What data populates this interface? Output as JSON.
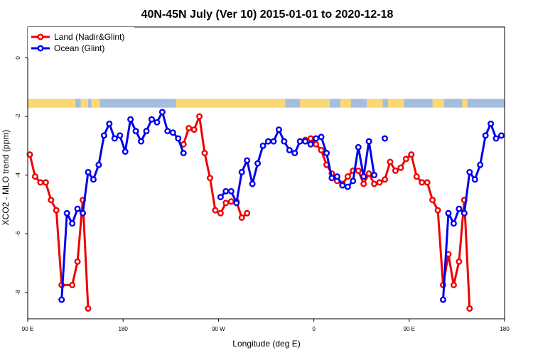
{
  "chart_data": {
    "type": "line",
    "title": "40N-45N July (Ver 10)   2015-01-01 to 2020-12-18",
    "xlabel": "Longitude (deg E)",
    "ylabel": "XCO2 - MLO trend (ppm)",
    "xlim": [
      90,
      540
    ],
    "ylim": [
      -8.9,
      1.05
    ],
    "x_ticks": [
      {
        "value": 90,
        "label": "90 E"
      },
      {
        "value": 180,
        "label": "180"
      },
      {
        "value": 270,
        "label": "90 W"
      },
      {
        "value": 360,
        "label": "0"
      },
      {
        "value": 450,
        "label": "90 E"
      },
      {
        "value": 540,
        "label": "180"
      }
    ],
    "y_ticks": [
      {
        "value": 0,
        "label": "0"
      },
      {
        "value": -2,
        "label": "-2"
      },
      {
        "value": -4,
        "label": "-4"
      },
      {
        "value": -6,
        "label": "-6"
      },
      {
        "value": -8,
        "label": "-8"
      }
    ],
    "legend_position": "top-left",
    "land_ocean_strip": {
      "y_top": -1.4,
      "y_bottom": -1.7,
      "land_color": "#fad975",
      "ocean_color": "#a5bddf",
      "land_ranges": [
        [
          90,
          135
        ],
        [
          140,
          147
        ],
        [
          150,
          158
        ],
        [
          230,
          333
        ],
        [
          347,
          375
        ],
        [
          385,
          395
        ],
        [
          410,
          425
        ],
        [
          430,
          445
        ],
        [
          472,
          483
        ],
        [
          500,
          505
        ]
      ]
    },
    "series": [
      {
        "name": "Land (Nadir&Glint)",
        "color": "#ee0000",
        "segments": [
          [
            [
              92,
              -3.3
            ],
            [
              97,
              -4.05
            ],
            [
              102,
              -4.25
            ],
            [
              107,
              -4.25
            ],
            [
              112,
              -4.85
            ],
            [
              117,
              -5.2
            ],
            [
              122,
              -7.75
            ],
            [
              132,
              -7.75
            ],
            [
              137,
              -6.95
            ],
            [
              142,
              -4.85
            ],
            [
              147,
              -8.55
            ]
          ],
          [
            [
              237,
              -2.95
            ],
            [
              242,
              -2.4
            ],
            [
              247,
              -2.45
            ],
            [
              252,
              -2.0
            ],
            [
              257,
              -3.25
            ],
            [
              262,
              -4.1
            ],
            [
              267,
              -5.2
            ],
            [
              272,
              -5.3
            ],
            [
              277,
              -4.95
            ],
            [
              282,
              -4.9
            ],
            [
              287,
              -4.9
            ],
            [
              292,
              -5.45
            ],
            [
              297,
              -5.3
            ]
          ],
          [
            [
              352,
              -2.8
            ],
            [
              357,
              -2.75
            ],
            [
              362,
              -2.95
            ],
            [
              367,
              -3.15
            ],
            [
              372,
              -3.65
            ],
            [
              377,
              -3.95
            ],
            [
              382,
              -4.2
            ],
            [
              387,
              -4.3
            ],
            [
              392,
              -4.05
            ],
            [
              397,
              -3.85
            ],
            [
              402,
              -3.85
            ],
            [
              407,
              -4.3
            ],
            [
              412,
              -3.95
            ],
            [
              417,
              -4.3
            ],
            [
              422,
              -4.25
            ],
            [
              427,
              -4.15
            ],
            [
              432,
              -3.55
            ],
            [
              437,
              -3.85
            ],
            [
              442,
              -3.75
            ],
            [
              447,
              -3.45
            ],
            [
              452,
              -3.3
            ],
            [
              457,
              -4.05
            ],
            [
              462,
              -4.25
            ],
            [
              467,
              -4.25
            ],
            [
              472,
              -4.85
            ],
            [
              477,
              -5.2
            ],
            [
              482,
              -7.75
            ],
            [
              487,
              -6.7
            ],
            [
              492,
              -7.75
            ],
            [
              497,
              -6.95
            ],
            [
              502,
              -4.85
            ],
            [
              507,
              -8.55
            ]
          ]
        ]
      },
      {
        "name": "Ocean (Glint)",
        "color": "#0000ee",
        "segments": [
          [
            [
              122,
              -8.25
            ],
            [
              127,
              -5.3
            ],
            [
              132,
              -5.65
            ],
            [
              137,
              -5.15
            ],
            [
              142,
              -5.3
            ],
            [
              147,
              -3.9
            ],
            [
              152,
              -4.15
            ],
            [
              157,
              -3.65
            ],
            [
              162,
              -2.65
            ],
            [
              167,
              -2.25
            ],
            [
              172,
              -2.75
            ],
            [
              177,
              -2.65
            ],
            [
              182,
              -3.2
            ],
            [
              187,
              -2.1
            ],
            [
              192,
              -2.5
            ],
            [
              197,
              -2.85
            ],
            [
              202,
              -2.5
            ],
            [
              207,
              -2.1
            ],
            [
              212,
              -2.2
            ],
            [
              217,
              -1.85
            ],
            [
              222,
              -2.5
            ],
            [
              227,
              -2.55
            ],
            [
              232,
              -2.75
            ],
            [
              237,
              -3.25
            ]
          ],
          [
            [
              272,
              -4.75
            ],
            [
              277,
              -4.55
            ],
            [
              282,
              -4.55
            ],
            [
              287,
              -4.95
            ],
            [
              292,
              -3.9
            ],
            [
              297,
              -3.5
            ],
            [
              302,
              -4.3
            ],
            [
              307,
              -3.6
            ],
            [
              312,
              -3.0
            ],
            [
              317,
              -2.85
            ],
            [
              322,
              -2.85
            ],
            [
              327,
              -2.45
            ],
            [
              332,
              -2.85
            ],
            [
              337,
              -3.15
            ],
            [
              342,
              -3.25
            ],
            [
              347,
              -2.85
            ],
            [
              352,
              -2.85
            ],
            [
              357,
              -2.95
            ],
            [
              362,
              -2.75
            ],
            [
              367,
              -2.7
            ],
            [
              372,
              -3.25
            ],
            [
              377,
              -4.1
            ],
            [
              382,
              -4.05
            ],
            [
              387,
              -4.35
            ],
            [
              392,
              -4.4
            ],
            [
              397,
              -4.2
            ],
            [
              402,
              -3.05
            ],
            [
              407,
              -4.05
            ],
            [
              412,
              -2.85
            ],
            [
              417,
              -4.0
            ]
          ],
          [
            [
              427,
              -2.75
            ]
          ],
          [
            [
              482,
              -8.25
            ],
            [
              487,
              -5.3
            ],
            [
              492,
              -5.65
            ],
            [
              497,
              -5.15
            ],
            [
              502,
              -5.3
            ],
            [
              507,
              -3.9
            ],
            [
              512,
              -4.15
            ],
            [
              517,
              -3.65
            ],
            [
              522,
              -2.65
            ],
            [
              527,
              -2.25
            ],
            [
              532,
              -2.75
            ],
            [
              537,
              -2.65
            ]
          ]
        ]
      }
    ]
  }
}
